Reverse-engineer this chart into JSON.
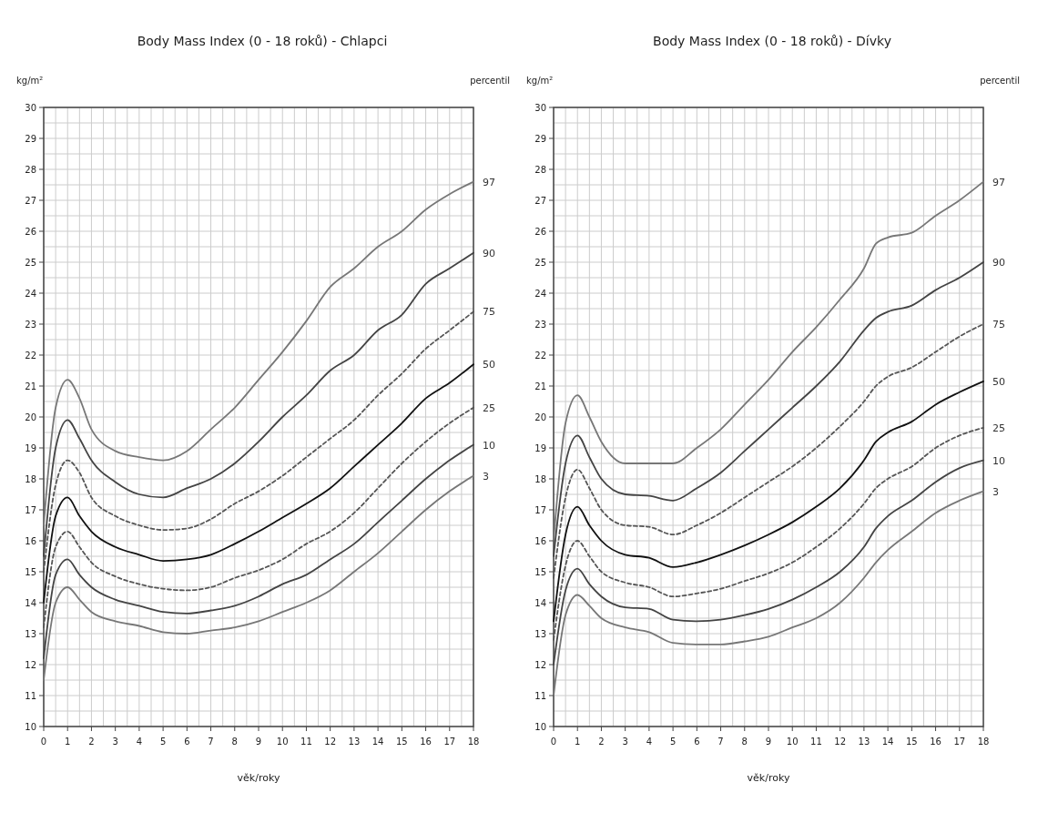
{
  "chart_data": [
    {
      "type": "line",
      "title": "Body Mass Index (0 - 18 roků) - Chlapci",
      "xlabel": "věk/roky",
      "ylabel": "kg/m²",
      "annotations": [
        "percentil"
      ],
      "grid": true,
      "marker": "none",
      "xlim": [
        0,
        18
      ],
      "ylim": [
        10,
        30
      ],
      "xticks": [
        0,
        1,
        2,
        3,
        4,
        5,
        6,
        7,
        8,
        9,
        10,
        11,
        12,
        13,
        14,
        15,
        16,
        17,
        18
      ],
      "yticks": [
        10,
        11,
        12,
        13,
        14,
        15,
        16,
        17,
        18,
        19,
        20,
        21,
        22,
        23,
        24,
        25,
        26,
        27,
        28,
        29,
        30
      ],
      "x": [
        0,
        0.5,
        1,
        1.5,
        2,
        3,
        4,
        5,
        6,
        7,
        8,
        9,
        10,
        11,
        12,
        13,
        14,
        15,
        16,
        17,
        18
      ],
      "series": [
        {
          "name": "97",
          "color": "#777777",
          "line_style": "solid",
          "values": [
            16.5,
            20.3,
            21.2,
            20.6,
            19.6,
            18.9,
            18.7,
            18.6,
            18.9,
            19.6,
            20.3,
            21.2,
            22.1,
            23.1,
            24.2,
            24.8,
            25.5,
            26.0,
            26.7,
            27.2,
            27.6
          ]
        },
        {
          "name": "90",
          "color": "#444444",
          "line_style": "solid",
          "values": [
            15.5,
            19.0,
            19.9,
            19.3,
            18.6,
            17.9,
            17.5,
            17.4,
            17.7,
            18.0,
            18.5,
            19.2,
            20.0,
            20.7,
            21.5,
            22.0,
            22.8,
            23.3,
            24.3,
            24.8,
            25.3
          ]
        },
        {
          "name": "75",
          "color": "#555555",
          "line_style": "dashed",
          "values": [
            15.0,
            17.8,
            18.6,
            18.2,
            17.4,
            16.8,
            16.5,
            16.35,
            16.4,
            16.7,
            17.2,
            17.6,
            18.1,
            18.7,
            19.3,
            19.9,
            20.7,
            21.4,
            22.2,
            22.8,
            23.4
          ]
        },
        {
          "name": "50",
          "color": "#111111",
          "line_style": "solid",
          "values": [
            14.0,
            16.8,
            17.4,
            16.8,
            16.3,
            15.8,
            15.55,
            15.35,
            15.4,
            15.55,
            15.9,
            16.3,
            16.75,
            17.2,
            17.7,
            18.4,
            19.1,
            19.8,
            20.6,
            21.1,
            21.7
          ]
        },
        {
          "name": "25",
          "color": "#555555",
          "line_style": "dashed",
          "values": [
            13.2,
            15.8,
            16.3,
            15.8,
            15.3,
            14.85,
            14.6,
            14.45,
            14.4,
            14.5,
            14.8,
            15.05,
            15.4,
            15.9,
            16.3,
            16.9,
            17.7,
            18.5,
            19.2,
            19.8,
            20.3
          ]
        },
        {
          "name": "10",
          "color": "#444444",
          "line_style": "solid",
          "values": [
            12.2,
            14.9,
            15.4,
            14.9,
            14.5,
            14.1,
            13.9,
            13.7,
            13.65,
            13.75,
            13.9,
            14.2,
            14.6,
            14.9,
            15.4,
            15.9,
            16.6,
            17.3,
            18.0,
            18.6,
            19.1
          ]
        },
        {
          "name": "3",
          "color": "#777777",
          "line_style": "solid",
          "values": [
            11.5,
            14.0,
            14.5,
            14.1,
            13.7,
            13.4,
            13.25,
            13.05,
            13.0,
            13.1,
            13.2,
            13.4,
            13.7,
            14.0,
            14.4,
            15.0,
            15.6,
            16.3,
            17.0,
            17.6,
            18.1
          ]
        }
      ]
    },
    {
      "type": "line",
      "title": "Body Mass Index (0 - 18 roků) - Dívky",
      "xlabel": "věk/roky",
      "ylabel": "kg/m²",
      "annotations": [
        "percentil"
      ],
      "grid": true,
      "marker": "none",
      "xlim": [
        0,
        18
      ],
      "ylim": [
        10,
        30
      ],
      "xticks": [
        0,
        1,
        2,
        3,
        4,
        5,
        6,
        7,
        8,
        9,
        10,
        11,
        12,
        13,
        14,
        15,
        16,
        17,
        18
      ],
      "yticks": [
        10,
        11,
        12,
        13,
        14,
        15,
        16,
        17,
        18,
        19,
        20,
        21,
        22,
        23,
        24,
        25,
        26,
        27,
        28,
        29,
        30
      ],
      "x": [
        0,
        0.5,
        1,
        1.5,
        2,
        3,
        4,
        5,
        6,
        7,
        8,
        9,
        10,
        11,
        12,
        13,
        13.5,
        14,
        15,
        16,
        17,
        18
      ],
      "series": [
        {
          "name": "97",
          "color": "#777777",
          "line_style": "solid",
          "values": [
            16.0,
            19.8,
            20.7,
            20.0,
            19.2,
            18.5,
            18.5,
            18.5,
            19.0,
            19.6,
            20.4,
            21.2,
            22.1,
            22.9,
            23.8,
            24.8,
            25.6,
            25.8,
            25.95,
            26.5,
            27.0,
            27.6
          ]
        },
        {
          "name": "90",
          "color": "#444444",
          "line_style": "solid",
          "values": [
            15.5,
            18.5,
            19.4,
            18.7,
            18.0,
            17.5,
            17.45,
            17.3,
            17.7,
            18.2,
            18.9,
            19.6,
            20.3,
            21.0,
            21.8,
            22.8,
            23.2,
            23.4,
            23.6,
            24.1,
            24.5,
            25.0
          ]
        },
        {
          "name": "75",
          "color": "#555555",
          "line_style": "dashed",
          "values": [
            14.8,
            17.4,
            18.3,
            17.7,
            17.0,
            16.5,
            16.45,
            16.2,
            16.5,
            16.9,
            17.4,
            17.9,
            18.4,
            19.0,
            19.7,
            20.5,
            21.0,
            21.3,
            21.6,
            22.1,
            22.6,
            23.0
          ]
        },
        {
          "name": "50",
          "color": "#111111",
          "line_style": "solid",
          "values": [
            13.4,
            16.2,
            17.1,
            16.5,
            16.0,
            15.55,
            15.45,
            15.15,
            15.3,
            15.55,
            15.85,
            16.2,
            16.6,
            17.1,
            17.7,
            18.6,
            19.2,
            19.5,
            19.85,
            20.4,
            20.8,
            21.15
          ]
        },
        {
          "name": "25",
          "color": "#555555",
          "line_style": "dashed",
          "values": [
            12.8,
            15.2,
            16.0,
            15.5,
            15.0,
            14.65,
            14.5,
            14.2,
            14.3,
            14.45,
            14.7,
            14.95,
            15.3,
            15.8,
            16.4,
            17.2,
            17.7,
            18.0,
            18.4,
            19.0,
            19.4,
            19.65
          ]
        },
        {
          "name": "10",
          "color": "#444444",
          "line_style": "solid",
          "values": [
            12.0,
            14.4,
            15.1,
            14.6,
            14.2,
            13.85,
            13.8,
            13.45,
            13.4,
            13.45,
            13.6,
            13.8,
            14.1,
            14.5,
            15.0,
            15.8,
            16.4,
            16.8,
            17.3,
            17.9,
            18.35,
            18.6
          ]
        },
        {
          "name": "3",
          "color": "#777777",
          "line_style": "solid",
          "values": [
            11.0,
            13.6,
            14.25,
            13.9,
            13.5,
            13.2,
            13.05,
            12.7,
            12.65,
            12.65,
            12.75,
            12.9,
            13.2,
            13.5,
            14.0,
            14.8,
            15.3,
            15.7,
            16.3,
            16.9,
            17.3,
            17.6
          ]
        }
      ]
    }
  ]
}
